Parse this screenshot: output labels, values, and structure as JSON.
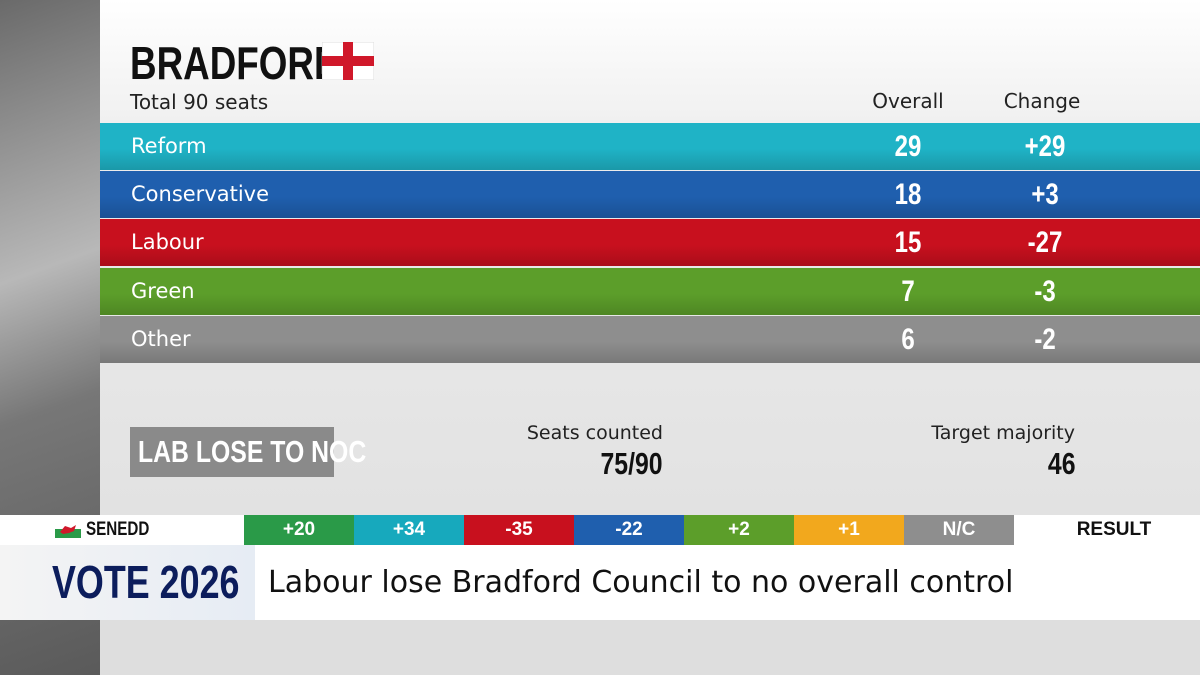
{
  "header": {
    "title": "BRADFORD",
    "subtitle": "Total 90 seats"
  },
  "table": {
    "columns": [
      "Overall",
      "Change"
    ],
    "rows": [
      {
        "party": "Reform",
        "overall": "29",
        "change": "+29",
        "color": "#1fb3c6"
      },
      {
        "party": "Conservative",
        "overall": "18",
        "change": "+3",
        "color": "#1f5fae"
      },
      {
        "party": "Labour",
        "overall": "15",
        "change": "-27",
        "color": "#c8101e"
      },
      {
        "party": "Green",
        "overall": "7",
        "change": "-3",
        "color": "#5c9e2a"
      },
      {
        "party": "Other",
        "overall": "6",
        "change": "-2",
        "color": "#8e8e8e"
      }
    ]
  },
  "summary": {
    "status": "LAB LOSE TO NOC",
    "seats_counted_label": "Seats counted",
    "seats_counted": "75/90",
    "target_label": "Target majority",
    "target": "46"
  },
  "ticker": {
    "label": "SENEDD",
    "items": [
      {
        "text": "+20",
        "color": "#2a9a48"
      },
      {
        "text": "+34",
        "color": "#17a9bd"
      },
      {
        "text": "-35",
        "color": "#c8101e"
      },
      {
        "text": "-22",
        "color": "#1f5fae"
      },
      {
        "text": "+2",
        "color": "#5c9e2a"
      },
      {
        "text": "+1",
        "color": "#f2a81d"
      },
      {
        "text": "N/C",
        "color": "#8e8e8e"
      }
    ],
    "result": "RESULT"
  },
  "banner": {
    "brand": "VOTE 2026",
    "headline": "Labour lose Bradford Council to no overall control"
  }
}
